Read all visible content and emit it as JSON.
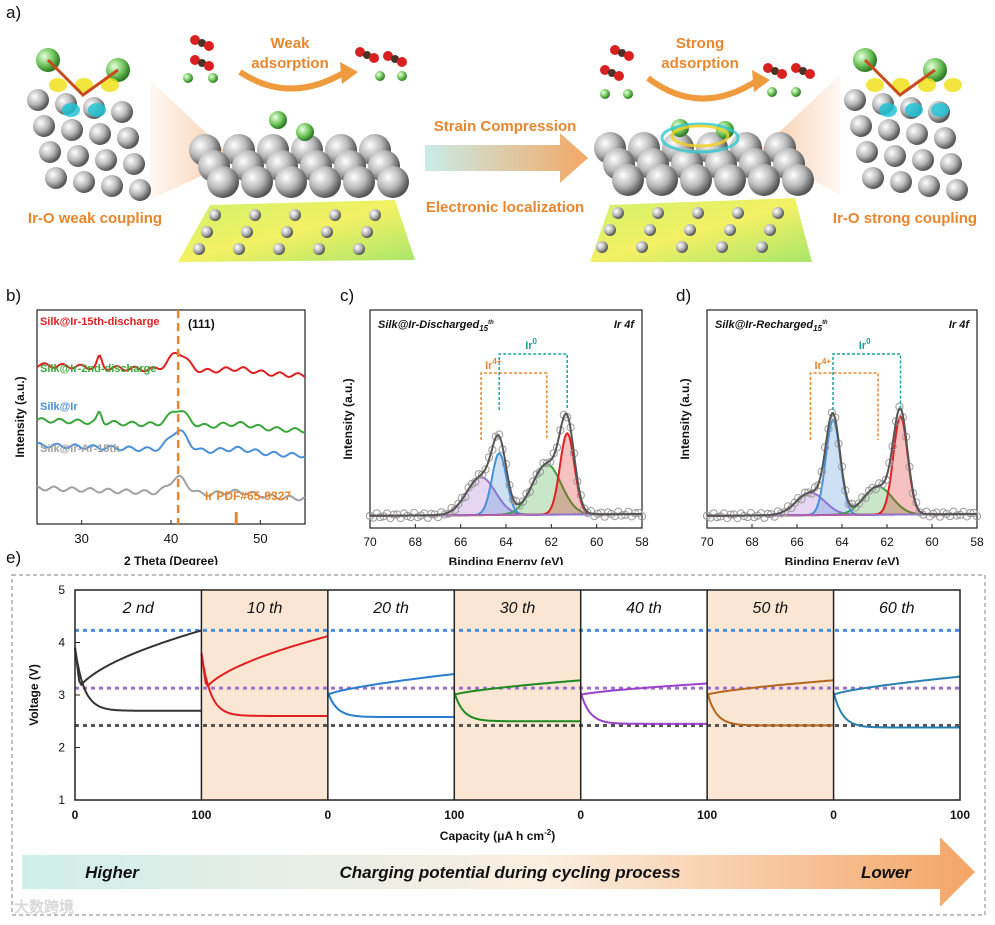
{
  "panel_labels": {
    "a": "a)",
    "b": "b)",
    "c": "c)",
    "d": "d)",
    "e": "e)"
  },
  "schematic": {
    "weak_adsorption_line1": "Weak",
    "weak_adsorption_line2": "adsorption",
    "strong_adsorption_line1": "Strong",
    "strong_adsorption_line2": "adsorption",
    "strain_compression": "Strain Compression",
    "electronic_localization": "Electronic  localization",
    "weak_coupling": "Ir-O weak coupling",
    "strong_coupling": "Ir-O strong coupling"
  },
  "colors": {
    "orange": "#e8862e",
    "teal": "#1aa3a0",
    "red": "#e02020",
    "green": "#3aa53a",
    "blue": "#4a90d9",
    "grey": "#a0a0a0",
    "purple": "#a070d0",
    "brown": "#b5651d"
  },
  "chart_data": [
    {
      "id": "b",
      "type": "line",
      "xlabel": "2 Theta (Degree)",
      "ylabel": "Intensity (a.u.)",
      "xlim": [
        25,
        55
      ],
      "xticks": [
        "30",
        "40",
        "50"
      ],
      "peak_label": "(111)",
      "reference_label": "Ir PDF#65-9327",
      "reference_peaks": [
        40.8,
        47.3
      ],
      "series": [
        {
          "name": "Silk@Ir-15th-discharge",
          "color": "#e02020"
        },
        {
          "name": "Silk@Ir-2nd-discharge",
          "color": "#3aa53a"
        },
        {
          "name": "Silk@Ir",
          "color": "#4a90d9"
        },
        {
          "name": "Silk@Ir-Ar-15th",
          "color": "#a0a0a0"
        }
      ]
    },
    {
      "id": "c",
      "type": "line",
      "title": "Silk@Ir-Discharged",
      "title_sub": "15",
      "title_sup": "th",
      "corner_label": "Ir 4f",
      "xlabel": "Binding Energy (eV)",
      "ylabel": "Intensity (a.u.)",
      "xlim": [
        70,
        58
      ],
      "xticks": [
        "70",
        "68",
        "66",
        "64",
        "62",
        "60",
        "58"
      ],
      "ir4_label": "Ir",
      "ir4_sup": "4+",
      "ir0_label": "Ir",
      "ir0_sup": "0",
      "components": [
        {
          "name": "Ir0 4f7/2",
          "center": 61.3,
          "amp": 0.58,
          "width": 0.45,
          "color": "#e02020"
        },
        {
          "name": "Ir0 4f5/2",
          "center": 64.3,
          "amp": 0.44,
          "width": 0.45,
          "color": "#4a90d9"
        },
        {
          "name": "Ir4+ 4f7/2",
          "center": 62.2,
          "amp": 0.36,
          "width": 0.9,
          "color": "#3aa53a"
        },
        {
          "name": "Ir4+ 4f5/2",
          "center": 65.1,
          "amp": 0.27,
          "width": 0.9,
          "color": "#a070d0"
        }
      ]
    },
    {
      "id": "d",
      "type": "line",
      "title": "Silk@Ir-Recharged",
      "title_sub": "15",
      "title_sup": "th",
      "corner_label": "Ir 4f",
      "xlabel": "Binding Energy (eV)",
      "ylabel": "Intensity (a.u.)",
      "xlim": [
        70,
        58
      ],
      "xticks": [
        "70",
        "68",
        "66",
        "64",
        "62",
        "60",
        "58"
      ],
      "ir4_label": "Ir",
      "ir4_sup": "4+",
      "ir0_label": "Ir",
      "ir0_sup": "0",
      "components": [
        {
          "name": "Ir0 4f7/2",
          "center": 61.4,
          "amp": 0.7,
          "width": 0.45,
          "color": "#e02020"
        },
        {
          "name": "Ir0 4f5/2",
          "center": 64.4,
          "amp": 0.68,
          "width": 0.45,
          "color": "#4a90d9"
        },
        {
          "name": "Ir4+ 4f7/2",
          "center": 62.4,
          "amp": 0.2,
          "width": 0.9,
          "color": "#3aa53a"
        },
        {
          "name": "Ir4+ 4f5/2",
          "center": 65.4,
          "amp": 0.16,
          "width": 0.9,
          "color": "#a070d0"
        }
      ]
    },
    {
      "id": "e",
      "type": "line",
      "xlabel": "Capacity (μA h cm⁻²)",
      "xlabel_text": "Capacity (μA h cm",
      "xlabel_sup": "-2",
      "xlabel_close": ")",
      "ylabel": "Voltage (V)",
      "ylim": [
        1,
        5
      ],
      "yticks": [
        "1",
        "2",
        "3",
        "4",
        "5"
      ],
      "xticks": [
        "0",
        "100",
        "0",
        "100",
        "0",
        "100",
        "0",
        "100"
      ],
      "reference_lines": [
        {
          "value": 4.23,
          "color": "#4a90d9"
        },
        {
          "value": 3.13,
          "color": "#a070d0"
        },
        {
          "value": 2.42,
          "color": "#555555"
        }
      ],
      "cycles": [
        {
          "name": "2 nd",
          "color": "#333333",
          "charge_end": 4.23,
          "discharge_end": 2.7,
          "shaded": false
        },
        {
          "name": "10 th",
          "color": "#e02020",
          "charge_end": 4.12,
          "discharge_end": 2.6,
          "shaded": true
        },
        {
          "name": "20 th",
          "color": "#2b7bd0",
          "charge_end": 3.4,
          "discharge_end": 2.58,
          "shaded": false
        },
        {
          "name": "30 th",
          "color": "#1c8a1c",
          "charge_end": 3.28,
          "discharge_end": 2.5,
          "shaded": true
        },
        {
          "name": "40 th",
          "color": "#9b40c9",
          "charge_end": 3.22,
          "discharge_end": 2.45,
          "shaded": false
        },
        {
          "name": "50 th",
          "color": "#b5651d",
          "charge_end": 3.28,
          "discharge_end": 2.42,
          "shaded": true
        },
        {
          "name": "60 th",
          "color": "#2a7fb0",
          "charge_end": 3.35,
          "discharge_end": 2.38,
          "shaded": false
        }
      ]
    }
  ],
  "arrow_banner": {
    "left": "Higher",
    "middle": "Charging potential during cycling process",
    "right": "Lower"
  },
  "watermark": "大数跨境"
}
